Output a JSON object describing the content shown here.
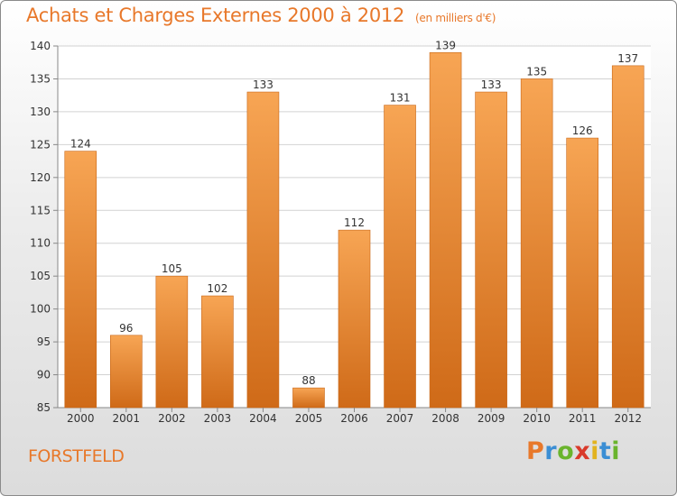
{
  "chart_data": {
    "type": "bar",
    "title": "Achats et Charges Externes 2000 à 2012",
    "unit": "(en milliers d'€)",
    "categories": [
      "2000",
      "2001",
      "2002",
      "2003",
      "2004",
      "2005",
      "2006",
      "2007",
      "2008",
      "2009",
      "2010",
      "2011",
      "2012"
    ],
    "values": [
      124,
      96,
      105,
      102,
      133,
      88,
      112,
      131,
      139,
      133,
      135,
      126,
      137
    ],
    "ylim": [
      85,
      140
    ],
    "yticks": [
      85,
      90,
      95,
      100,
      105,
      110,
      115,
      120,
      125,
      130,
      135,
      140
    ],
    "grid": true,
    "bar_color": "#f0923e",
    "grid_color": "#d2d2d2"
  },
  "location": "FORSTFELD",
  "brand": {
    "text": "Proxiti",
    "colors": [
      "#e8782a",
      "#3b8ed4",
      "#6ab42d",
      "#d93a2b",
      "#e2b31f",
      "#3b8ed4",
      "#6ab42d"
    ]
  },
  "colors": {
    "accent": "#e8782a"
  }
}
